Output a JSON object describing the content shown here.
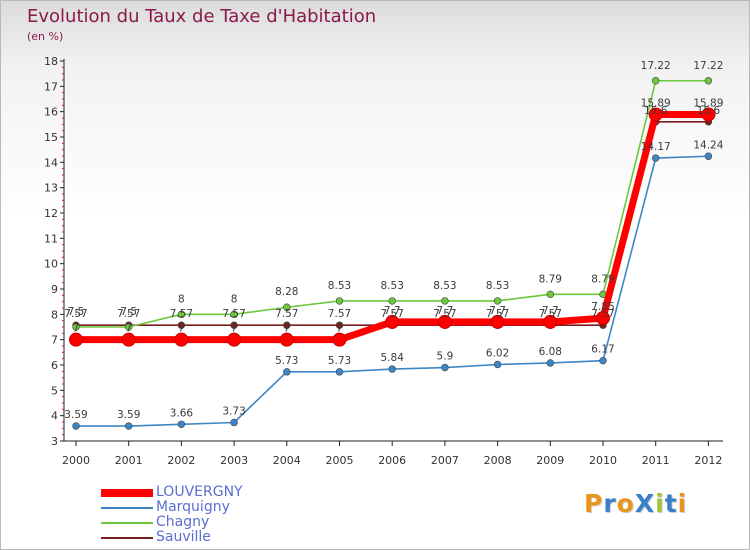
{
  "header": {
    "title": "Evolution du Taux de Taxe d'Habitation",
    "subtitle": "(en %)"
  },
  "logo": {
    "text": "ProXiti",
    "letter_colors": [
      "#e8951c",
      "#3c7fc9",
      "#e8951c",
      "#3c7fc9",
      "#9ec43a",
      "#3c7fc9",
      "#e8951c"
    ]
  },
  "chart_data": {
    "type": "line",
    "title": "Evolution du Taux de Taxe d'Habitation",
    "ylabel": "(en %)",
    "xlabel": "",
    "ylim": [
      3,
      18
    ],
    "yticks": [
      "3",
      "4",
      "5",
      "6",
      "7",
      "8",
      "9",
      "10",
      "11",
      "12",
      "13",
      "14",
      "15",
      "16",
      "17",
      "18"
    ],
    "categories": [
      "2000",
      "2001",
      "2002",
      "2003",
      "2004",
      "2005",
      "2006",
      "2007",
      "2008",
      "2009",
      "2010",
      "2011",
      "2012"
    ],
    "grid": false,
    "legend": "bottom-left",
    "series": [
      {
        "name": "LOUVERGNY",
        "color": "#ff0000",
        "values": [
          7.0,
          7.0,
          7.0,
          7.0,
          7.0,
          7.0,
          7.7,
          7.7,
          7.7,
          7.7,
          7.85,
          15.89,
          15.89
        ],
        "labels": [
          "7",
          "7",
          "7",
          "7",
          "7",
          "7",
          "7.7",
          "7.7",
          "7.7",
          "7.7",
          "7.85",
          "15.89",
          "15.89"
        ]
      },
      {
        "name": "Marquigny",
        "color": "#3c86c6",
        "values": [
          3.59,
          3.59,
          3.66,
          3.73,
          5.73,
          5.73,
          5.84,
          5.9,
          6.02,
          6.08,
          6.17,
          14.17,
          14.24
        ],
        "labels": [
          "3.59",
          "3.59",
          "3.66",
          "3.73",
          "5.73",
          "5.73",
          "5.84",
          "5.9",
          "6.02",
          "6.08",
          "6.17",
          "14.17",
          "14.24"
        ]
      },
      {
        "name": "Chagny",
        "color": "#6cc83c",
        "values": [
          7.5,
          7.5,
          8.0,
          8.0,
          8.28,
          8.53,
          8.53,
          8.53,
          8.53,
          8.79,
          8.79,
          17.22,
          17.22
        ],
        "labels": [
          "7.5",
          "7.5",
          "8",
          "8",
          "8.28",
          "8.53",
          "8.53",
          "8.53",
          "8.53",
          "8.79",
          "8.79",
          "17.22",
          "17.22"
        ]
      },
      {
        "name": "Sauville",
        "color": "#7a1e1e",
        "values": [
          7.57,
          7.57,
          7.57,
          7.57,
          7.57,
          7.57,
          7.57,
          7.57,
          7.57,
          7.57,
          7.57,
          15.6,
          15.6
        ],
        "labels": [
          "7.57",
          "7.57",
          "7.57",
          "7.57",
          "7.57",
          "7.57",
          "7.57",
          "7.57",
          "7.57",
          "7.57",
          "7.57",
          "15.6",
          "15.6"
        ]
      }
    ]
  }
}
